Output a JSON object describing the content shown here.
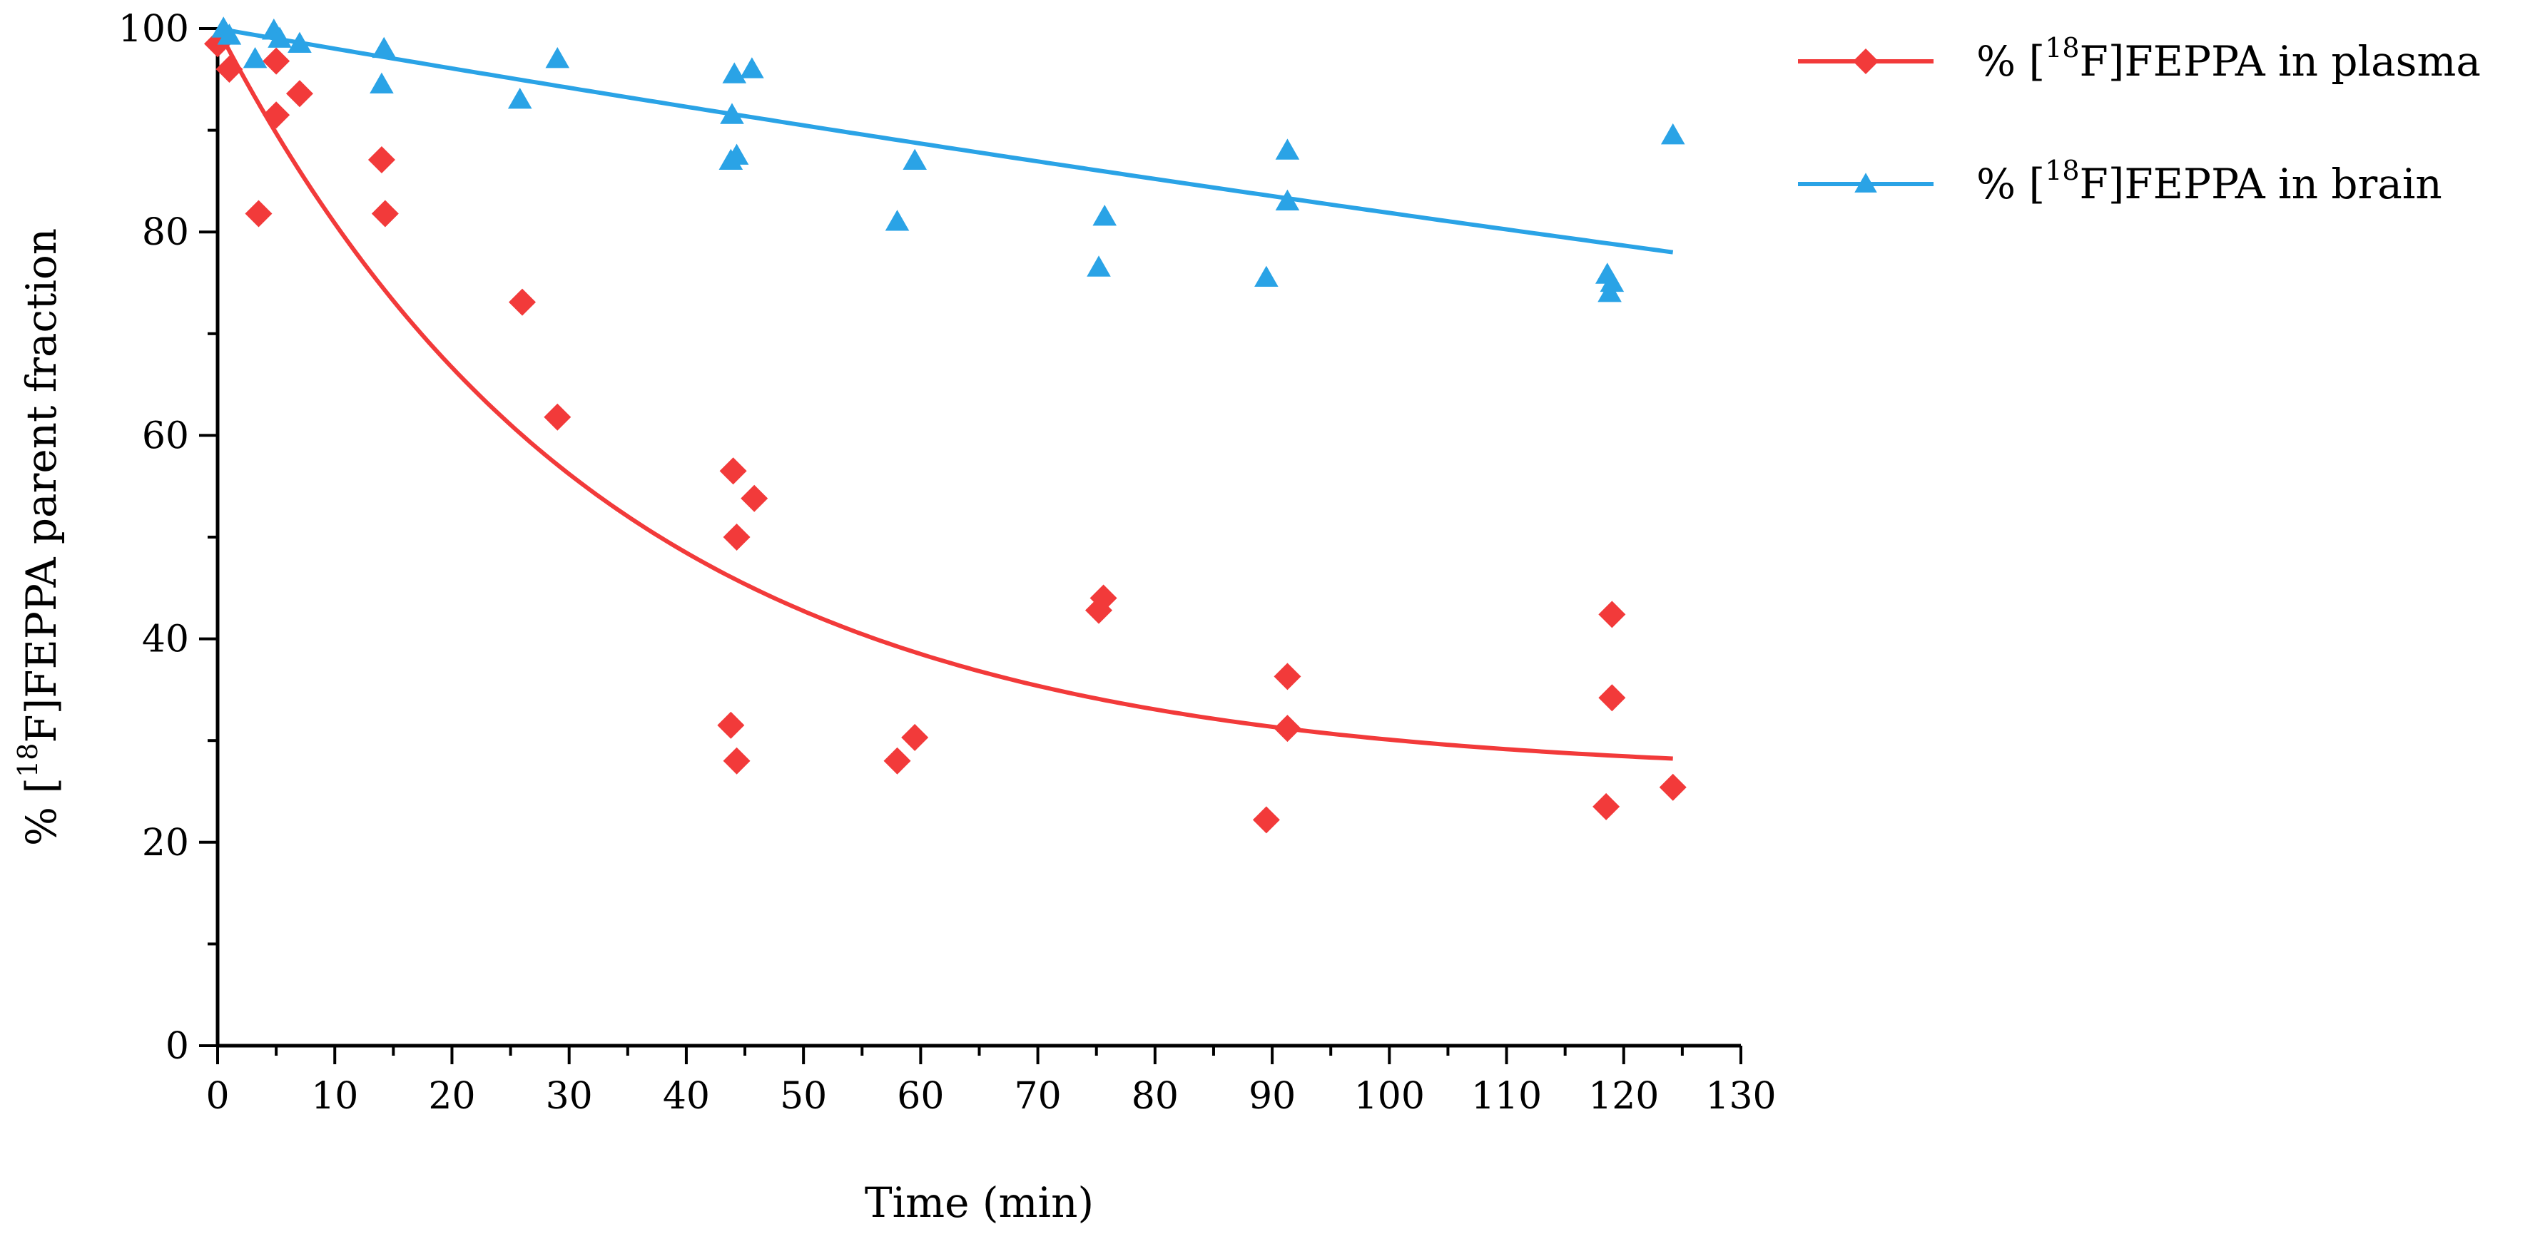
{
  "chart_data": {
    "type": "scatter",
    "title": "",
    "xlabel": "Time (min)",
    "ylabel": {
      "prefix": "% [",
      "sup": "18",
      "suffix": "F]FEPPA parent fraction"
    },
    "xlim": [
      0,
      130
    ],
    "ylim": [
      0,
      100
    ],
    "xticks": [
      0,
      10,
      20,
      30,
      40,
      50,
      60,
      70,
      80,
      90,
      100,
      110,
      120,
      130
    ],
    "yticks": [
      0,
      20,
      40,
      60,
      80,
      100
    ],
    "grid": false,
    "legend_position": "top-right",
    "series": [
      {
        "name": "% [18F]FEPPA in plasma",
        "legend": {
          "prefix": "% [",
          "sup": "18",
          "suffix": "F]FEPPA in plasma"
        },
        "color": "#f23a3a",
        "marker": "diamond",
        "points": [
          [
            0,
            98.5
          ],
          [
            1,
            96
          ],
          [
            3.5,
            81.8
          ],
          [
            5,
            91.5
          ],
          [
            5,
            96.8
          ],
          [
            7,
            93.6
          ],
          [
            14,
            87.1
          ],
          [
            14.3,
            81.8
          ],
          [
            26,
            73.1
          ],
          [
            29,
            61.8
          ],
          [
            44,
            56.5
          ],
          [
            44.3,
            50
          ],
          [
            45.8,
            53.8
          ],
          [
            43.8,
            31.5
          ],
          [
            44.3,
            28
          ],
          [
            58,
            28
          ],
          [
            59.5,
            30.3
          ],
          [
            75.2,
            42.8
          ],
          [
            75.6,
            44
          ],
          [
            89.5,
            22.2
          ],
          [
            91.3,
            36.3
          ],
          [
            91.3,
            31.2
          ],
          [
            118.5,
            23.5
          ],
          [
            119,
            42.4
          ],
          [
            119,
            34.2
          ],
          [
            124.2,
            25.4
          ]
        ],
        "fit": {
          "plateau": 26.5,
          "span": 73.5,
          "k": 0.0302,
          "x_range": [
            0,
            124.2
          ]
        }
      },
      {
        "name": "% [18F]FEPPA in brain",
        "legend": {
          "prefix": "% [",
          "sup": "18",
          "suffix": "F]FEPPA in brain"
        },
        "color": "#2aa3e6",
        "marker": "triangle",
        "points": [
          [
            0.5,
            100
          ],
          [
            1,
            99.3
          ],
          [
            3.2,
            97
          ],
          [
            4.8,
            99.8
          ],
          [
            5.3,
            99
          ],
          [
            7,
            98.5
          ],
          [
            14.2,
            98
          ],
          [
            14,
            94.5
          ],
          [
            25.8,
            93
          ],
          [
            29,
            97
          ],
          [
            43.9,
            91.5
          ],
          [
            44.1,
            95.5
          ],
          [
            45.6,
            96
          ],
          [
            43.8,
            87
          ],
          [
            44.3,
            87.5
          ],
          [
            58,
            81
          ],
          [
            59.5,
            87
          ],
          [
            75.2,
            76.5
          ],
          [
            75.7,
            81.5
          ],
          [
            89.5,
            75.5
          ],
          [
            91.3,
            88
          ],
          [
            91.3,
            83
          ],
          [
            118.6,
            75.8
          ],
          [
            118.8,
            74
          ],
          [
            119,
            75
          ],
          [
            124.2,
            89.5
          ]
        ],
        "fit": {
          "plateau": 0,
          "span": 100,
          "k": 0.002,
          "x_range": [
            0,
            124.2
          ]
        }
      }
    ]
  }
}
